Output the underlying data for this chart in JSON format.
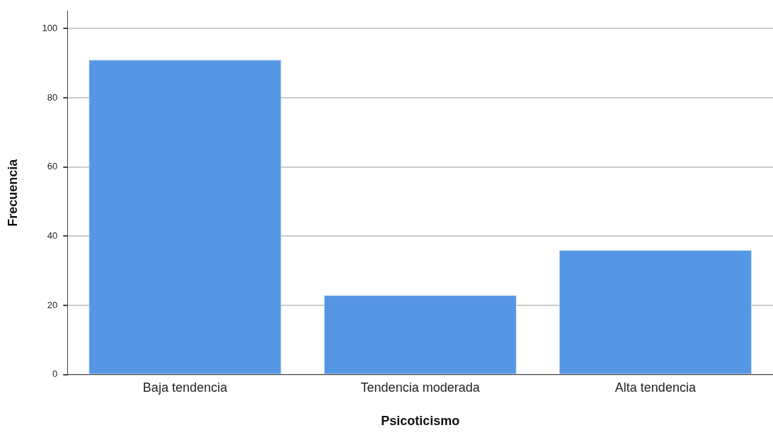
{
  "chart_data": {
    "type": "bar",
    "xlabel": "Psicoticismo",
    "ylabel": "Frecuencia",
    "categories": [
      "Baja tendencia",
      "Tendencia moderada",
      "Alta tendencia"
    ],
    "values": [
      91,
      23,
      36
    ],
    "color": "#5596e5",
    "ylim": [
      0,
      105
    ],
    "yticks": [
      0,
      20,
      40,
      60,
      80,
      100
    ],
    "grid": "y",
    "legend": false
  }
}
